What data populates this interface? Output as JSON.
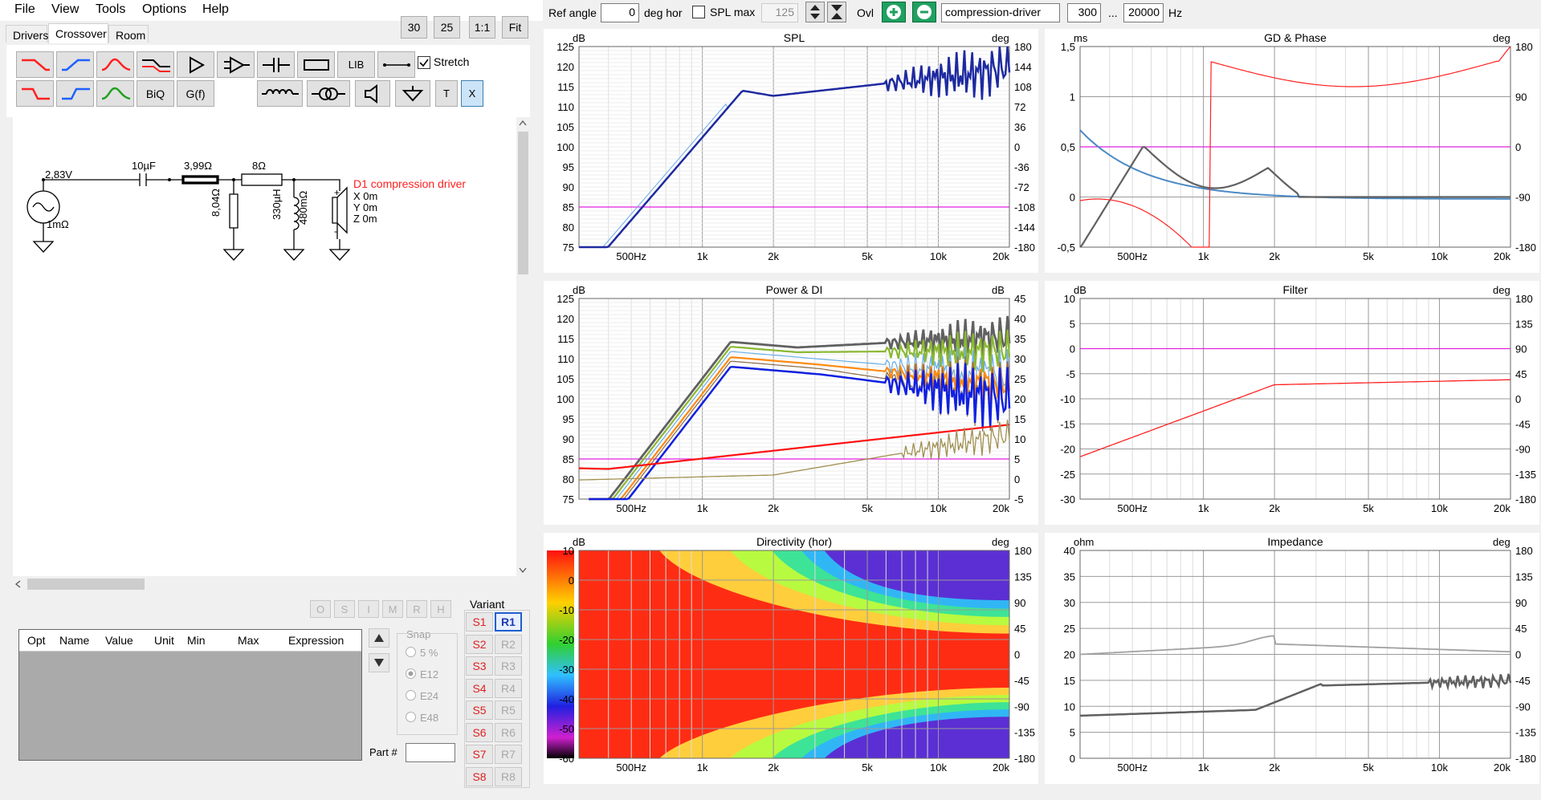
{
  "menu": [
    "File",
    "View",
    "Tools",
    "Options",
    "Help"
  ],
  "tabs": [
    "Drivers",
    "Crossover",
    "Room"
  ],
  "top_buttons": [
    "30",
    "25",
    "1:1",
    "Fit"
  ],
  "toolbar": {
    "lib": "LIB",
    "biq": "BiQ",
    "gf": "G(f)",
    "t": "T",
    "x": "X",
    "stretch": "Stretch"
  },
  "schematic": {
    "source_voltage": "2,83V",
    "source_res": "1mΩ",
    "cap": "10µF",
    "r1": "3,99Ω",
    "r2": "8Ω",
    "shunt_r": "8,04Ω",
    "inductor": "330µH",
    "ind_res": "480mΩ",
    "driver": "D1 compression driver",
    "x": "X 0m",
    "y": "Y 0m",
    "z": "Z 0m"
  },
  "opt_buttons": [
    "O",
    "S",
    "I",
    "M",
    "R",
    "H"
  ],
  "opt_table": {
    "headers": [
      "Opt",
      "Name",
      "Value",
      "Unit",
      "Min",
      "Max",
      "Expression"
    ]
  },
  "variant": {
    "label": "Variant",
    "s": [
      "S1",
      "S2",
      "S3",
      "S4",
      "S5",
      "S6",
      "S7",
      "S8"
    ],
    "r": [
      "R1",
      "R2",
      "R3",
      "R4",
      "R5",
      "R6",
      "R7",
      "R8"
    ]
  },
  "snap": {
    "label": "Snap",
    "options": [
      "5 %",
      "E12",
      "E24",
      "E48"
    ],
    "selected": "E12"
  },
  "part_label": "Part #",
  "topbar": {
    "ref_angle_label": "Ref angle",
    "ref_angle": "0",
    "deg_hor": "deg hor",
    "spl_max_label": "SPL max",
    "spl_max": "125",
    "ovl": "Ovl",
    "driver_name": "compression-driver",
    "f_lo": "300",
    "dots": "...",
    "f_hi": "20000",
    "hz": "Hz"
  },
  "freq_ticks": [
    "500Hz",
    "1k",
    "2k",
    "5k",
    "10k",
    "20k"
  ],
  "colors": {
    "accent_blue": "#1e3cb4",
    "red": "#ff2020",
    "magenta": "#e020e0",
    "steel": "#4a8ac4",
    "grey": "#707070"
  },
  "panels": {
    "spl": {
      "title": "SPL",
      "left_unit": "dB",
      "right_unit": "deg",
      "left_ticks": [
        "125",
        "120",
        "115",
        "110",
        "105",
        "100",
        "95",
        "90",
        "85",
        "80",
        "75"
      ],
      "right_ticks": [
        "180",
        "144",
        "108",
        "72",
        "36",
        "0",
        "-36",
        "-72",
        "-108",
        "-144",
        "-180"
      ]
    },
    "gd": {
      "title": "GD & Phase",
      "left_unit": "ms",
      "right_unit": "deg",
      "left_ticks": [
        "1,5",
        "1",
        "0,5",
        "0",
        "-0,5"
      ],
      "right_ticks": [
        "180",
        "90",
        "0",
        "-90",
        "-180"
      ]
    },
    "power": {
      "title": "Power & DI",
      "left_unit": "dB",
      "right_unit": "dB",
      "left_ticks": [
        "125",
        "120",
        "115",
        "110",
        "105",
        "100",
        "95",
        "90",
        "85",
        "80",
        "75"
      ],
      "right_ticks": [
        "45",
        "40",
        "35",
        "30",
        "25",
        "20",
        "15",
        "10",
        "5",
        "0",
        "-5"
      ]
    },
    "filter": {
      "title": "Filter",
      "left_unit": "dB",
      "right_unit": "deg",
      "left_ticks": [
        "10",
        "5",
        "0",
        "-5",
        "-10",
        "-15",
        "-20",
        "-25",
        "-30"
      ],
      "right_ticks": [
        "180",
        "135",
        "90",
        "45",
        "0",
        "-45",
        "-90",
        "-135",
        "-180"
      ]
    },
    "directivity": {
      "title": "Directivity (hor)",
      "left_unit": "dB",
      "right_unit": "deg",
      "left_ticks": [
        "10",
        "0",
        "-10",
        "-20",
        "-30",
        "-40",
        "-50",
        "-60"
      ],
      "right_ticks": [
        "180",
        "135",
        "90",
        "45",
        "0",
        "-45",
        "-90",
        "-135",
        "-180"
      ]
    },
    "impedance": {
      "title": "Impedance",
      "left_unit": "ohm",
      "right_unit": "deg",
      "left_ticks": [
        "40",
        "35",
        "30",
        "25",
        "20",
        "15",
        "10",
        "5",
        "0"
      ],
      "right_ticks": [
        "180",
        "135",
        "90",
        "45",
        "0",
        "-45",
        "-90",
        "-135",
        "-180"
      ]
    }
  }
}
